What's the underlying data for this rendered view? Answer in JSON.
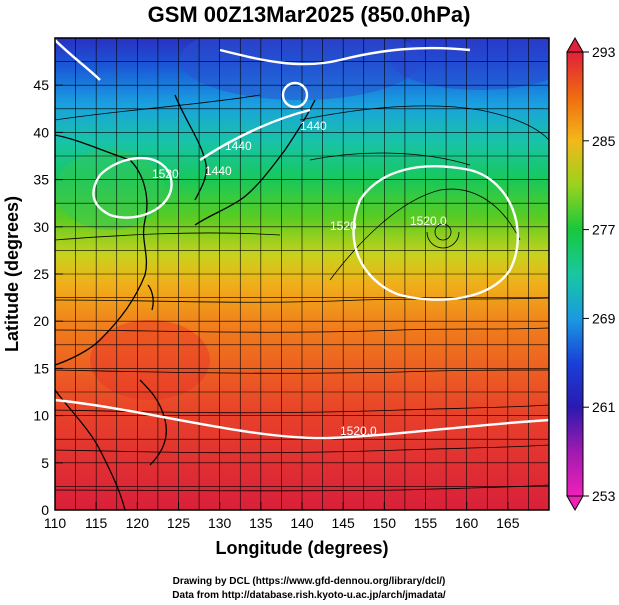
{
  "title": "GSM 00Z13Mar2025 (850.0hPa)",
  "xlabel": "Longitude (degrees)",
  "ylabel": "Latitude  (degrees)",
  "x_ticks": [
    "110",
    "115",
    "120",
    "125",
    "130",
    "135",
    "140",
    "145",
    "150",
    "155",
    "160",
    "165"
  ],
  "y_ticks": [
    "0",
    "5",
    "10",
    "15",
    "20",
    "25",
    "30",
    "35",
    "40",
    "45"
  ],
  "colorbar": {
    "ticks": [
      "293",
      "285",
      "277",
      "269",
      "261",
      "253"
    ],
    "colors": [
      "#e0203a",
      "#f06a10",
      "#f2b81a",
      "#9ad21e",
      "#18c83c",
      "#18c8a0",
      "#1a9ae0",
      "#1a40d8",
      "#2a1ab0",
      "#a01ab0",
      "#f020b8"
    ]
  },
  "contour_labels": [
    "1520",
    "1440",
    "1440",
    "1520.0",
    "1520.0",
    "1440",
    "1520"
  ],
  "credits": [
    "Drawing by DCL (https://www.gfd-dennou.org/library/dcl/)",
    "Data from http://database.rish.kyoto-u.ac.jp/arch/jmadata/"
  ],
  "chart_data": {
    "type": "heatmap",
    "variable": "temperature with streamlines and contours",
    "title": "GSM 00Z13Mar2025 (850.0hPa)",
    "xlabel": "Longitude (degrees)",
    "ylabel": "Latitude  (degrees)",
    "xlim": [
      110,
      170
    ],
    "ylim": [
      0,
      50
    ],
    "x_ticks": [
      110,
      115,
      120,
      125,
      130,
      135,
      140,
      145,
      150,
      155,
      160,
      165
    ],
    "y_ticks": [
      0,
      5,
      10,
      15,
      20,
      25,
      30,
      35,
      40,
      45
    ],
    "colorbar_range": [
      253,
      293
    ],
    "colorbar_ticks": [
      293,
      285,
      277,
      269,
      261,
      253
    ],
    "contour_label_values": [
      "1520",
      "1440",
      "1440",
      "1520.0",
      "1520.0",
      "1440",
      "1520"
    ],
    "grid": true
  }
}
